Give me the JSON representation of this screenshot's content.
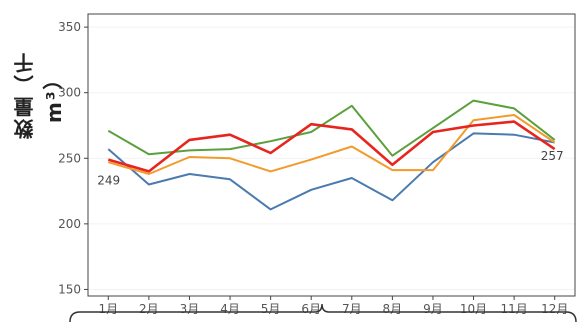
{
  "chart_data": {
    "type": "line",
    "ylabel": "数量（千m³）",
    "xlabel": "",
    "categories": [
      "1月",
      "2月",
      "3月",
      "4月",
      "5月",
      "6月",
      "7月",
      "8月",
      "9月",
      "10月",
      "11月",
      "12月"
    ],
    "ylim": [
      145,
      360
    ],
    "yticks": [
      150,
      200,
      250,
      300,
      350
    ],
    "series": [
      {
        "color": "#4a7ab0",
        "values": [
          257,
          230,
          238,
          234,
          211,
          226,
          235,
          218,
          247,
          269,
          268,
          262
        ]
      },
      {
        "color": "#f39a2c",
        "values": [
          247,
          238,
          251,
          250,
          240,
          249,
          259,
          241,
          241,
          279,
          283,
          262
        ]
      },
      {
        "color": "#5aa03c",
        "values": [
          271,
          253,
          256,
          257,
          263,
          270,
          290,
          252,
          273,
          294,
          288,
          264
        ]
      },
      {
        "color": "#e8241e",
        "values": [
          249,
          240,
          264,
          268,
          254,
          276,
          272,
          245,
          270,
          275,
          278,
          257
        ]
      }
    ],
    "annotations": [
      {
        "series": 3,
        "index": 0,
        "text": "249"
      },
      {
        "series": 3,
        "index": 11,
        "text": "257"
      }
    ]
  }
}
